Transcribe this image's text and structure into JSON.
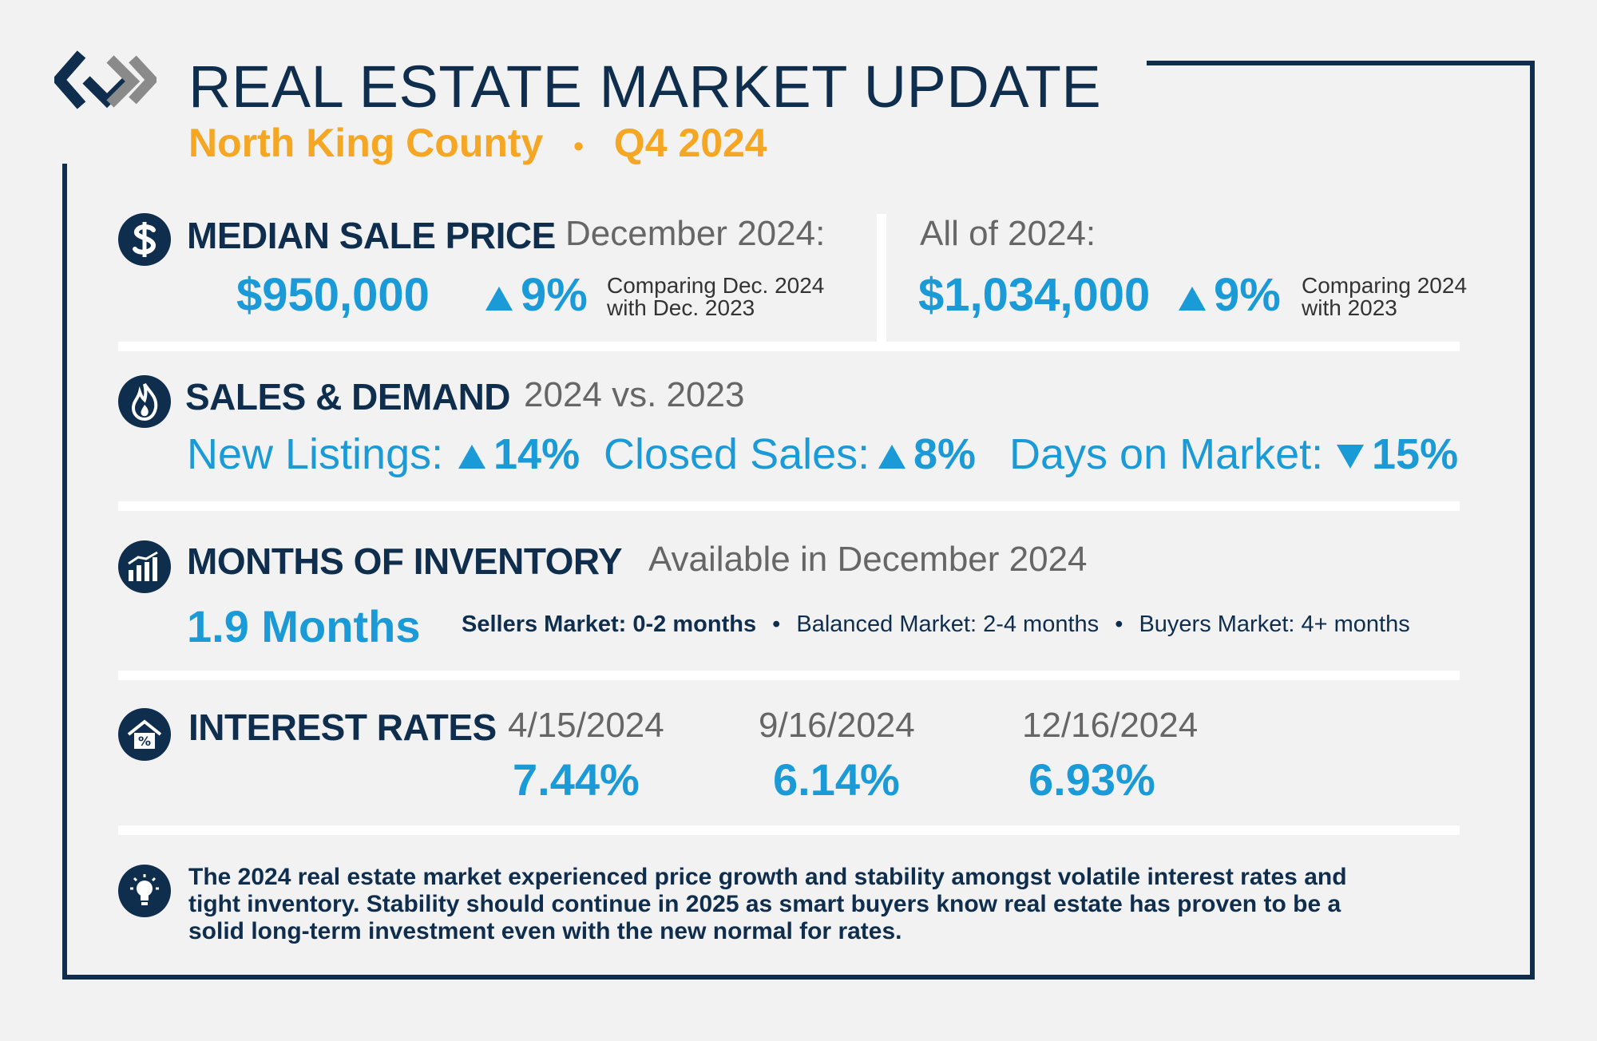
{
  "header": {
    "title": "REAL ESTATE MARKET UPDATE",
    "region": "North King County",
    "separator": "•",
    "period": "Q4 2024"
  },
  "median": {
    "heading": "MEDIAN SALE PRICE",
    "dec_label": "December 2024:",
    "dec_value": "$950,000",
    "dec_change": "9%",
    "dec_note_1": "Comparing Dec. 2024",
    "dec_note_2": "with Dec. 2023",
    "year_label": "All of 2024:",
    "year_value": "$1,034,000",
    "year_change": "9%",
    "year_note_1": "Comparing 2024",
    "year_note_2": "with 2023"
  },
  "sales": {
    "heading": "SALES & DEMAND",
    "sub": "2024 vs. 2023",
    "new_listings_label": "New Listings:",
    "new_listings_value": "14%",
    "closed_sales_label": "Closed Sales:",
    "closed_sales_value": "8%",
    "dom_label": "Days on Market:",
    "dom_value": "15%"
  },
  "inventory": {
    "heading": "MONTHS OF INVENTORY",
    "sub": "Available in December 2024",
    "value": "1.9 Months",
    "sellers": "Sellers Market: 0-2 months",
    "balanced": "Balanced Market: 2-4 months",
    "buyers": "Buyers Market: 4+ months",
    "bullet": "•"
  },
  "rates": {
    "heading": "INTEREST RATES",
    "items": [
      {
        "date": "4/15/2024",
        "rate": "7.44%"
      },
      {
        "date": "9/16/2024",
        "rate": "6.14%"
      },
      {
        "date": "12/16/2024",
        "rate": "6.93%"
      }
    ]
  },
  "summary": {
    "line1": "The 2024 real estate market experienced price growth and stability amongst volatile interest rates and",
    "line2": "tight inventory. Stability should continue in 2025 as smart buyers know real estate has proven to be a",
    "line3": "solid long-term investment even with the new normal for rates."
  },
  "colors": {
    "navy": "#0f2d4d",
    "blue": "#1a9ad6",
    "orange": "#f5a623",
    "gray": "#666666"
  },
  "icons": [
    "logo-icon",
    "dollar-icon",
    "flame-icon",
    "bar-chart-icon",
    "house-percent-icon",
    "lightbulb-icon"
  ]
}
